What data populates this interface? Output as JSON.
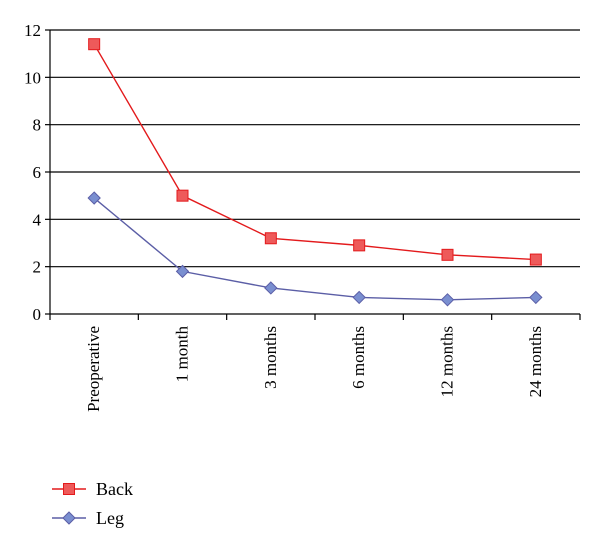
{
  "chart_data": {
    "type": "line",
    "title": "",
    "xlabel": "",
    "ylabel": "",
    "categories": [
      "Preoperative",
      "1 month",
      "3 months",
      "6 months",
      "12 months",
      "24 months"
    ],
    "ylim": [
      0,
      12
    ],
    "yticks": [
      0,
      2,
      4,
      6,
      8,
      10,
      12
    ],
    "grid": "horizontal",
    "legend_position": "bottom-left",
    "series": [
      {
        "name": "Back",
        "color": "#e31a1c",
        "marker_fill": "#ee5a5a",
        "marker": "square",
        "values": [
          11.4,
          5.0,
          3.2,
          2.9,
          2.5,
          2.3
        ]
      },
      {
        "name": "Leg",
        "color": "#5b5ea6",
        "marker_fill": "#7a8fd0",
        "marker": "diamond",
        "values": [
          4.9,
          1.8,
          1.1,
          0.7,
          0.6,
          0.7
        ]
      }
    ]
  }
}
